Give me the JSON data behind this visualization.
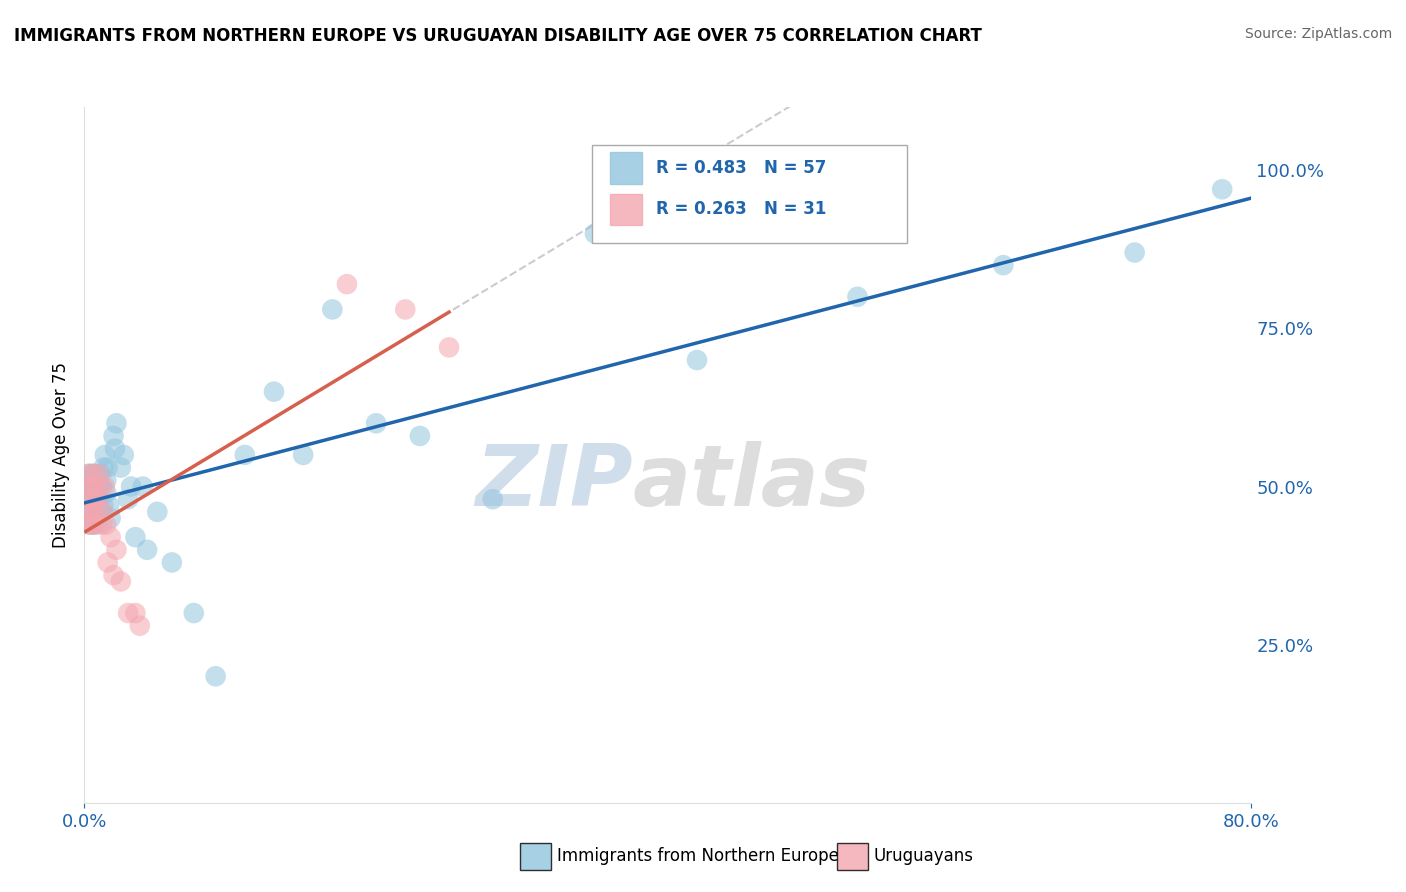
{
  "title": "IMMIGRANTS FROM NORTHERN EUROPE VS URUGUAYAN DISABILITY AGE OVER 75 CORRELATION CHART",
  "source": "Source: ZipAtlas.com",
  "xmin": 0.0,
  "xmax": 0.8,
  "ymin": 0.0,
  "ymax": 1.1,
  "watermark_zip": "ZIP",
  "watermark_atlas": "atlas",
  "legend_r1": "R = 0.483",
  "legend_n1": "N = 57",
  "legend_r2": "R = 0.263",
  "legend_n2": "N = 31",
  "series1_label": "Immigrants from Northern Europe",
  "series2_label": "Uruguayans",
  "series1_color": "#92c5de",
  "series2_color": "#f4a6b0",
  "line1_color": "#2166ac",
  "line2_color": "#d6604d",
  "blue_x": [
    0.001,
    0.002,
    0.003,
    0.003,
    0.004,
    0.004,
    0.005,
    0.005,
    0.005,
    0.006,
    0.006,
    0.007,
    0.007,
    0.008,
    0.008,
    0.009,
    0.009,
    0.01,
    0.01,
    0.011,
    0.012,
    0.012,
    0.013,
    0.013,
    0.014,
    0.015,
    0.015,
    0.016,
    0.017,
    0.018,
    0.02,
    0.021,
    0.022,
    0.025,
    0.027,
    0.03,
    0.032,
    0.035,
    0.04,
    0.043,
    0.05,
    0.06,
    0.075,
    0.09,
    0.11,
    0.13,
    0.15,
    0.17,
    0.2,
    0.23,
    0.28,
    0.35,
    0.42,
    0.53,
    0.63,
    0.72,
    0.78
  ],
  "blue_y": [
    0.5,
    0.48,
    0.52,
    0.46,
    0.5,
    0.44,
    0.52,
    0.46,
    0.48,
    0.5,
    0.44,
    0.52,
    0.48,
    0.46,
    0.5,
    0.44,
    0.46,
    0.5,
    0.48,
    0.52,
    0.46,
    0.5,
    0.53,
    0.47,
    0.55,
    0.49,
    0.51,
    0.53,
    0.47,
    0.45,
    0.58,
    0.56,
    0.6,
    0.53,
    0.55,
    0.48,
    0.5,
    0.42,
    0.5,
    0.4,
    0.46,
    0.38,
    0.3,
    0.2,
    0.55,
    0.65,
    0.55,
    0.78,
    0.6,
    0.58,
    0.48,
    0.9,
    0.7,
    0.8,
    0.85,
    0.87,
    0.97
  ],
  "pink_x": [
    0.001,
    0.002,
    0.003,
    0.003,
    0.004,
    0.004,
    0.005,
    0.005,
    0.006,
    0.006,
    0.007,
    0.007,
    0.008,
    0.009,
    0.01,
    0.011,
    0.012,
    0.013,
    0.014,
    0.015,
    0.016,
    0.018,
    0.02,
    0.022,
    0.025,
    0.03,
    0.035,
    0.038,
    0.18,
    0.22,
    0.25
  ],
  "pink_y": [
    0.5,
    0.46,
    0.52,
    0.44,
    0.48,
    0.5,
    0.44,
    0.46,
    0.52,
    0.48,
    0.5,
    0.44,
    0.46,
    0.48,
    0.52,
    0.5,
    0.44,
    0.46,
    0.5,
    0.44,
    0.38,
    0.42,
    0.36,
    0.4,
    0.35,
    0.3,
    0.3,
    0.28,
    0.82,
    0.78,
    0.72
  ]
}
